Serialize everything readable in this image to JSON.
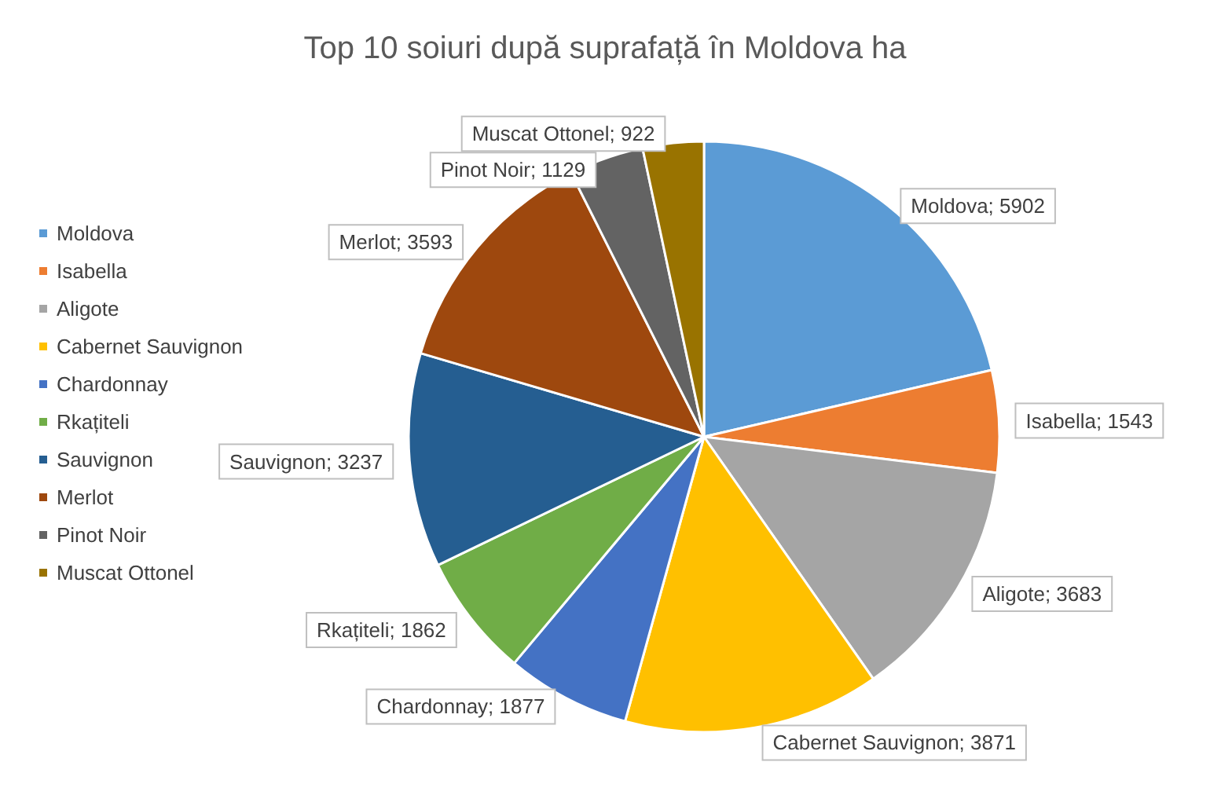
{
  "chart_data": {
    "type": "pie",
    "title": "Top 10 soiuri după suprafață în Moldova ha",
    "categories": [
      "Moldova",
      "Isabella",
      "Aligote",
      "Cabernet Sauvignon",
      "Chardonnay",
      "Rkațiteli",
      "Sauvignon",
      "Merlot",
      "Pinot Noir",
      "Muscat Ottonel"
    ],
    "values": [
      5902,
      1543,
      3683,
      3871,
      1877,
      1862,
      3237,
      3593,
      1129,
      922
    ],
    "colors": [
      "#5b9bd5",
      "#ed7d31",
      "#a5a5a5",
      "#ffc000",
      "#4472c4",
      "#70ad47",
      "#255e91",
      "#9e480e",
      "#636363",
      "#997300"
    ],
    "value_labels": [
      "Moldova; 5902",
      "Isabella; 1543",
      "Aligote; 3683",
      "Cabernet Sauvignon; 3871",
      "Chardonnay; 1877",
      "Rkațiteli; 1862",
      "Sauvignon; 3237",
      "Merlot; 3593",
      "Pinot Noir; 1129",
      "Muscat Ottonel; 922"
    ],
    "legend": "left"
  }
}
